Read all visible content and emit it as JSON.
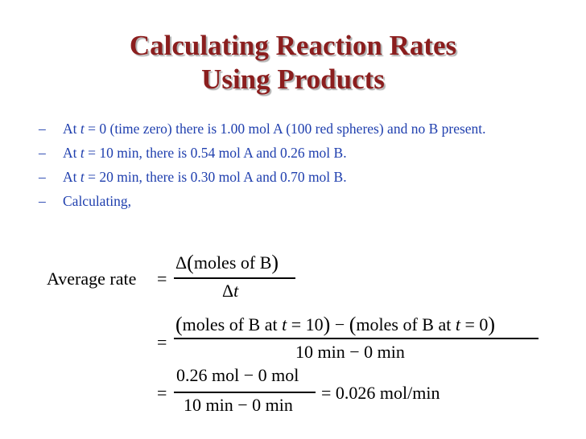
{
  "slide": {
    "title_line1": "Calculating Reaction Rates",
    "title_line2": "Using Products"
  },
  "bullets": [
    {
      "dash": "–",
      "prefix": "At ",
      "var": "t",
      "rest": " = 0 (time zero) there is 1.00 mol A (100 red spheres) and no B present."
    },
    {
      "dash": "–",
      "prefix": "At ",
      "var": "t",
      "rest": " = 10 min, there is 0.54 mol A and 0.26 mol B."
    },
    {
      "dash": "–",
      "prefix": "At ",
      "var": "t",
      "rest": " = 20 min, there is 0.30 mol A and 0.70 mol B."
    },
    {
      "dash": "–",
      "prefix": "Calculating,",
      "var": "",
      "rest": ""
    }
  ],
  "equation": {
    "lhs": "Average rate",
    "eq": "=",
    "num1_delta": "Δ",
    "num1_text": "moles of B",
    "den1_delta": "Δ",
    "den1_var": "t",
    "num2_part1": "moles of B at ",
    "num2_var1": "t",
    "num2_part2": " = 10",
    "num2_minus": "−",
    "num2_part3": "moles of B at ",
    "num2_var2": "t",
    "num2_part4": " = 0",
    "den2": "10 min − 0 min",
    "num3": "0.26 mol − 0 mol",
    "den3": "10 min − 0 min",
    "result": "= 0.026 mol/min"
  }
}
